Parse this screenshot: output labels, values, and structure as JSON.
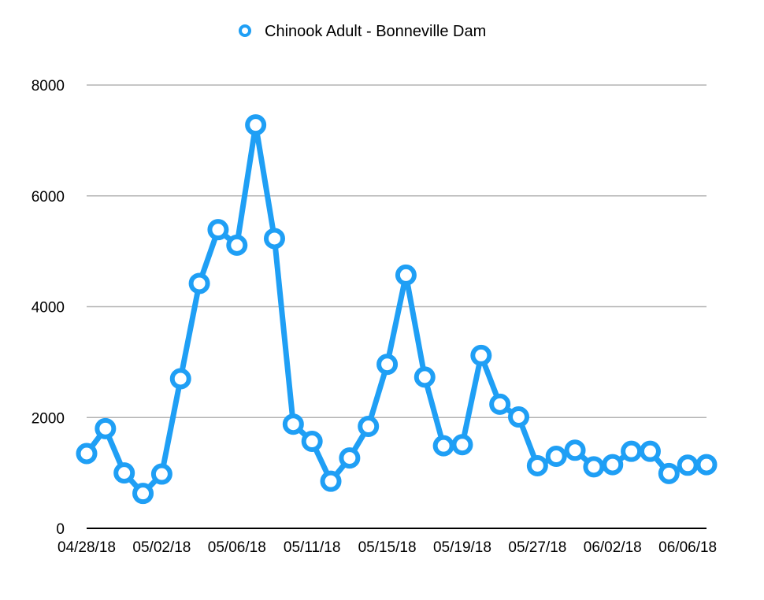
{
  "chart_data": {
    "type": "line",
    "title": "",
    "xlabel": "",
    "ylabel": "",
    "ylim": [
      0,
      8000
    ],
    "y_ticks": [
      0,
      2000,
      4000,
      6000,
      8000
    ],
    "grid": true,
    "legend_position": "top-center",
    "x_tick_labels": [
      "04/28/18",
      "05/02/18",
      "05/06/18",
      "05/11/18",
      "05/15/18",
      "05/19/18",
      "05/27/18",
      "06/02/18",
      "06/06/18"
    ],
    "x_tick_point_index": [
      0,
      4,
      8,
      12,
      16,
      20,
      24,
      28,
      32
    ],
    "series": [
      {
        "name": "Chinook Adult - Bonneville Dam",
        "color": "#1f9ff5",
        "values": [
          1350,
          1800,
          1000,
          630,
          980,
          2700,
          4420,
          5390,
          5110,
          7280,
          5230,
          1880,
          1570,
          850,
          1270,
          1840,
          2960,
          4570,
          2730,
          1490,
          1510,
          3120,
          2240,
          2010,
          1130,
          1300,
          1410,
          1110,
          1150,
          1390,
          1390,
          990,
          1140,
          1150
        ]
      }
    ]
  }
}
